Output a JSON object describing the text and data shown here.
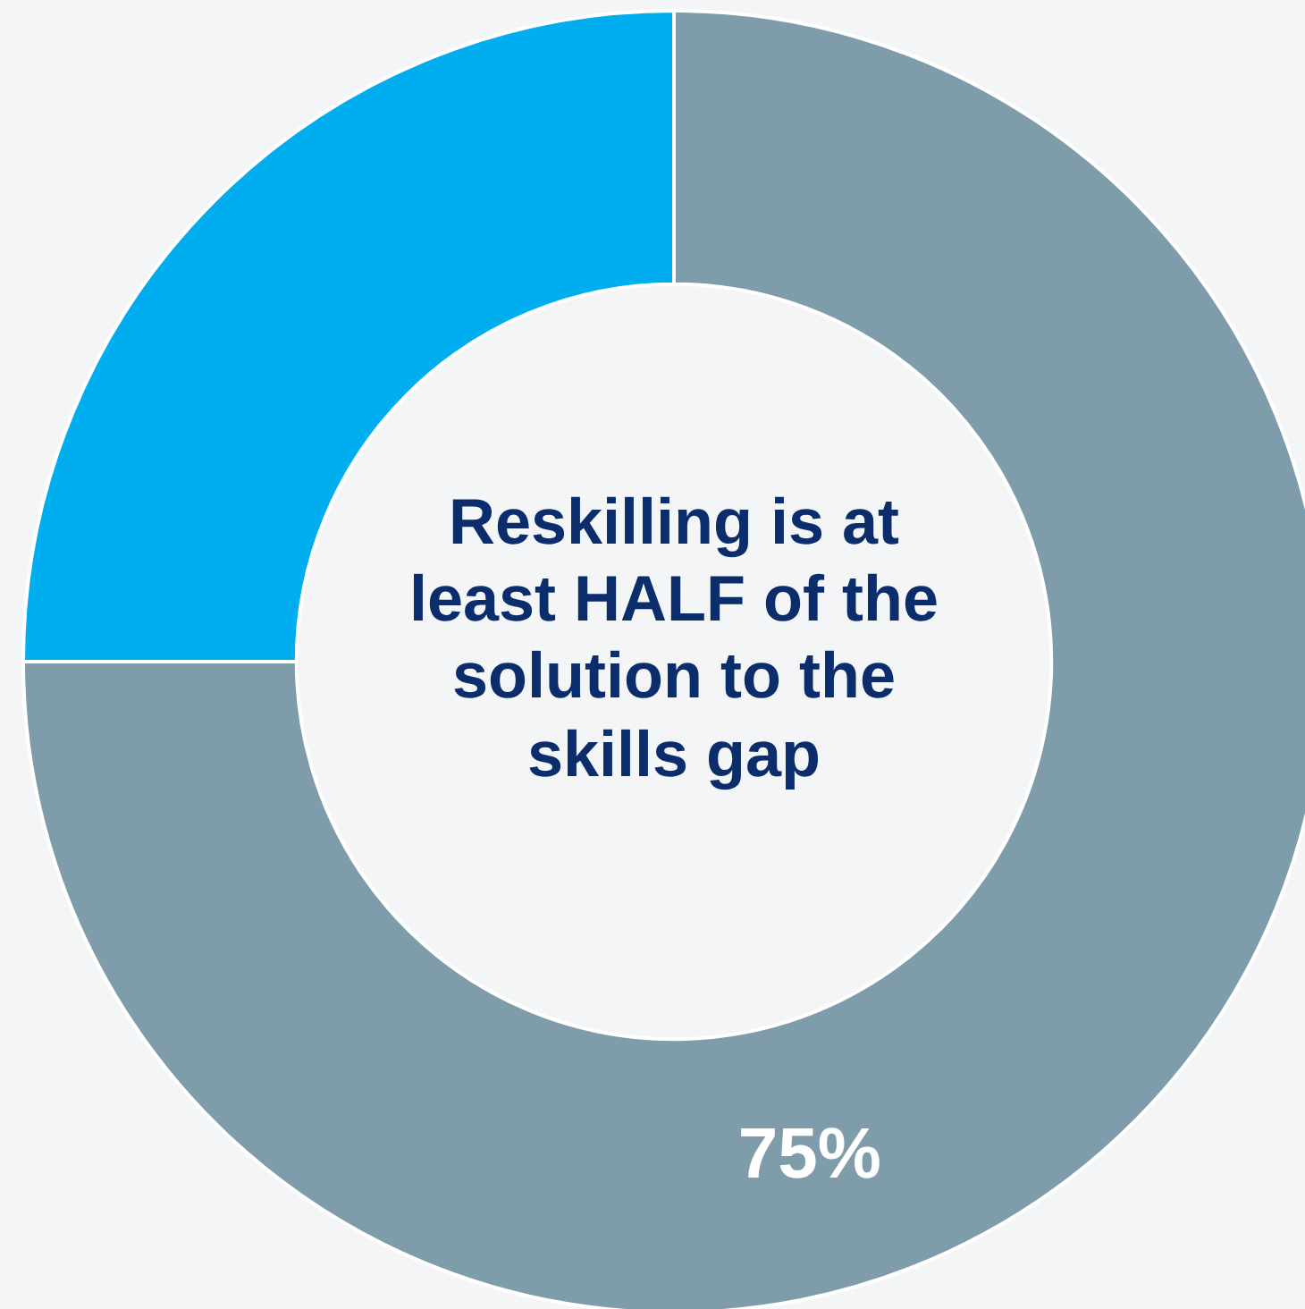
{
  "chart_data": {
    "type": "donut",
    "categories": [
      null,
      null
    ],
    "values": [
      75,
      25
    ],
    "colors": [
      "#7f9cab",
      "#00aeef"
    ],
    "value_labels": [
      "75%",
      null
    ],
    "annotations": [
      "Reskilling is at least HALF of the solution to the skills gap"
    ],
    "legend": false
  }
}
